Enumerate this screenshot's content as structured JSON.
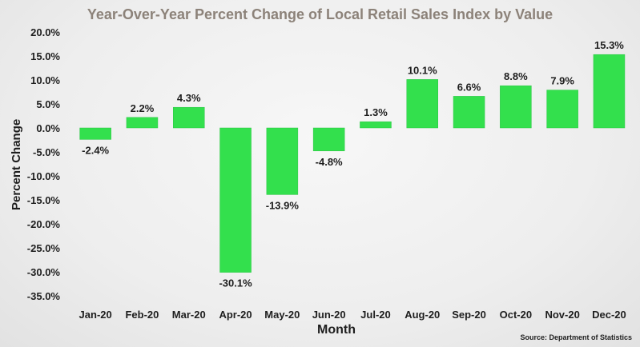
{
  "chart_data": {
    "type": "bar",
    "title": "Year-Over-Year Percent Change of Local Retail Sales Index by Value",
    "xlabel": "Month",
    "ylabel": "Percent Change",
    "categories": [
      "Jan-20",
      "Feb-20",
      "Mar-20",
      "Apr-20",
      "May-20",
      "Jun-20",
      "Jul-20",
      "Aug-20",
      "Sep-20",
      "Oct-20",
      "Nov-20",
      "Dec-20"
    ],
    "values": [
      -2.4,
      2.2,
      4.3,
      -30.1,
      -13.9,
      -4.8,
      1.3,
      10.1,
      6.6,
      8.8,
      7.9,
      15.3
    ],
    "data_labels": [
      "-2.4%",
      "2.2%",
      "4.3%",
      "-30.1%",
      "-13.9%",
      "-4.8%",
      "1.3%",
      "10.1%",
      "6.6%",
      "8.8%",
      "7.9%",
      "15.3%"
    ],
    "yticks": [
      20,
      15,
      10,
      5,
      0,
      -5,
      -10,
      -15,
      -20,
      -25,
      -30,
      -35
    ],
    "ytick_labels": [
      "20.0%",
      "15.0%",
      "10.0%",
      "5.0%",
      "0.0%",
      "-5.0%",
      "-10.0%",
      "-15.0%",
      "-20.0%",
      "-25.0%",
      "-30.0%",
      "-35.0%"
    ],
    "ylim": [
      -35,
      20
    ],
    "grid": false,
    "legend": "none",
    "bar_color": "#33e04d",
    "title_color": "#8c8279"
  },
  "source_note": "Source: Department of Statistics"
}
